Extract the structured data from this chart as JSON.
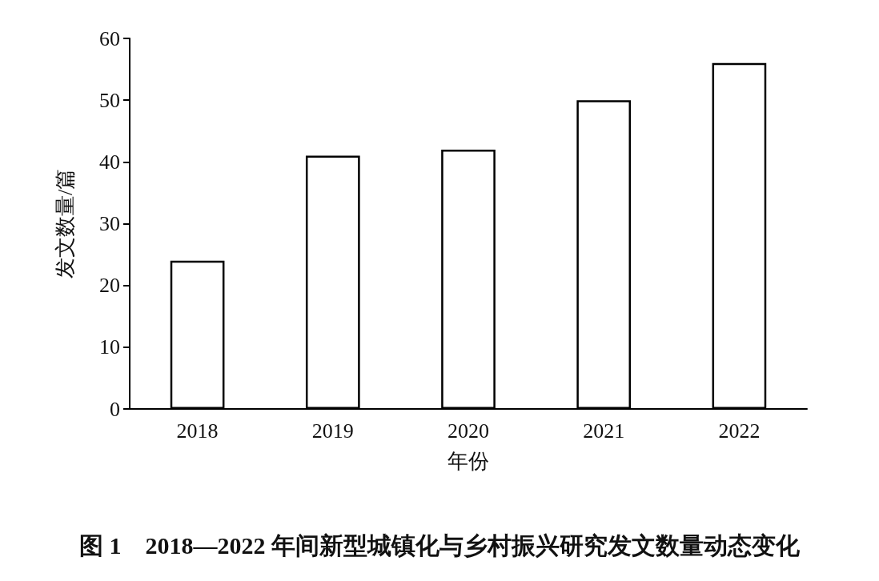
{
  "chart_data": {
    "type": "bar",
    "title": "图 1　2018—2022 年间新型城镇化与乡村振兴研究发文数量动态变化",
    "xlabel": "年份",
    "ylabel": "发文数量/篇",
    "categories": [
      "2018",
      "2019",
      "2020",
      "2021",
      "2022"
    ],
    "values": [
      24,
      41,
      42,
      50,
      56
    ],
    "color": "#ffffff",
    "ylim": [
      0,
      60
    ],
    "yticks": [
      0,
      10,
      20,
      30,
      40,
      50,
      60
    ],
    "grid": false
  }
}
